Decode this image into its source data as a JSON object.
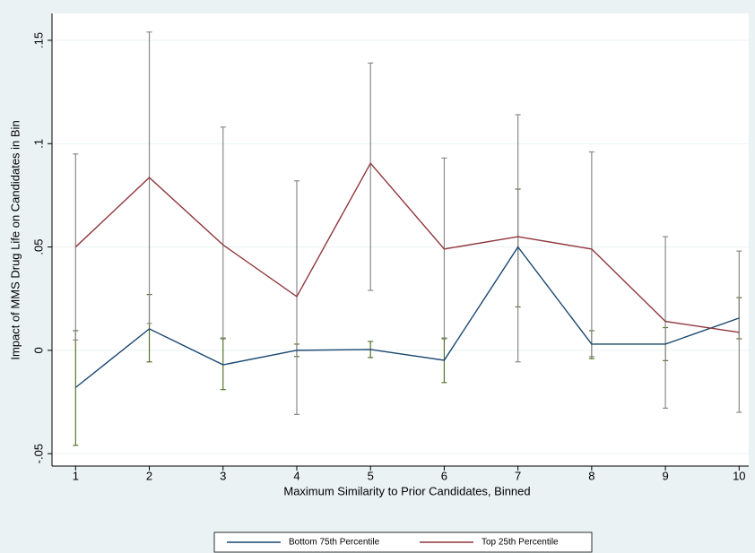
{
  "chart_data": {
    "type": "line",
    "x_label": "Maximum Similarity to Prior Candidates, Binned",
    "y_label": "Impact of MMS Drug Life on Candidates in Bin",
    "x": [
      1,
      2,
      3,
      4,
      5,
      6,
      7,
      8,
      9,
      10
    ],
    "xlim": [
      0.68,
      10.13
    ],
    "xticks": [
      1,
      2,
      3,
      4,
      5,
      6,
      7,
      8,
      9,
      10
    ],
    "ylim": [
      -0.056,
      0.163
    ],
    "yticks": [
      {
        "value": -0.05,
        "label": "-.05"
      },
      0,
      {
        "value": 0.05,
        "label": ".05"
      },
      {
        "value": 0.1,
        "label": ".1"
      },
      {
        "value": 0.15,
        "label": ".15"
      }
    ],
    "grid": true,
    "legend_position": "bottom",
    "series": [
      {
        "name": "Bottom 75th Percentile",
        "color": "#1a476f",
        "error_color": "#55752f",
        "values": [
          -0.018,
          0.0104,
          -0.007,
          0.0,
          0.0004,
          -0.0048,
          0.05,
          0.003,
          0.003,
          0.0156
        ],
        "upper": [
          0.0095,
          0.027,
          0.0056,
          0.003,
          0.0043,
          0.0056,
          0.078,
          0.0095,
          0.011,
          0.0255
        ],
        "lower": [
          -0.046,
          -0.0056,
          -0.019,
          -0.003,
          -0.0035,
          -0.0156,
          0.021,
          -0.004,
          -0.005,
          0.0056
        ]
      },
      {
        "name": "Top 25th Percentile",
        "color": "#90353b",
        "error_color": "#8a8a8a",
        "values": [
          0.05,
          0.0836,
          0.051,
          0.026,
          0.0905,
          0.049,
          0.055,
          0.049,
          0.014,
          0.0087
        ],
        "upper": [
          0.095,
          0.154,
          0.108,
          0.082,
          0.139,
          0.093,
          0.114,
          0.096,
          0.055,
          0.048
        ],
        "lower": [
          0.005,
          0.013,
          0.006,
          -0.031,
          0.029,
          0.006,
          -0.0056,
          -0.003,
          -0.028,
          -0.03
        ]
      }
    ]
  }
}
